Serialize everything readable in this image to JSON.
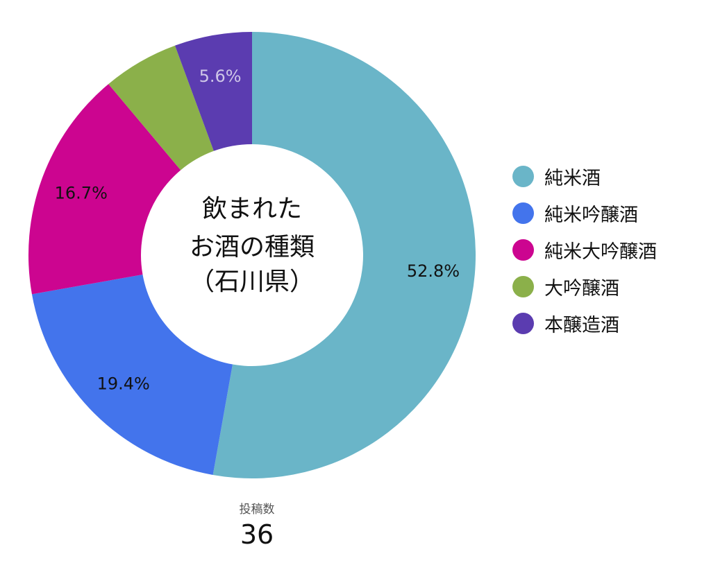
{
  "chart_data": {
    "type": "pie",
    "title_lines": [
      "飲まれた",
      "お酒の種類",
      "（石川県）"
    ],
    "slices": [
      {
        "name": "純米酒",
        "value": 52.8,
        "label": "52.8%",
        "color": "#6ab5c8"
      },
      {
        "name": "純米吟醸酒",
        "value": 19.4,
        "label": "19.4%",
        "color": "#4374ec"
      },
      {
        "name": "純米大吟醸酒",
        "value": 16.7,
        "label": "16.7%",
        "color": "#cc0590"
      },
      {
        "name": "大吟醸酒",
        "value": 5.5,
        "label": "",
        "color": "#8bb04a"
      },
      {
        "name": "本醸造酒",
        "value": 5.6,
        "label": "5.6%",
        "color": "#5b3cb0"
      }
    ],
    "legend_position": "right"
  },
  "footer": {
    "label": "投稿数",
    "value": "36"
  }
}
